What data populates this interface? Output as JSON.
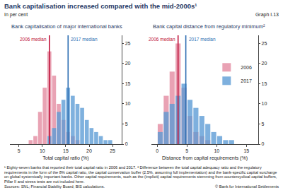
{
  "title": "Bank capitalisation increased compared with the mid-2000s¹",
  "subtitle": "In per cent",
  "graph_label": "Graph I.13",
  "notes": [
    "¹ Eighty-seven banks that reported their total capital ratio in 2006 and 2017.   ² Difference between the total capital adequacy ratio and the regulatory requirements in the form of the 8% capital ratio, the capital conservation buffer (2.5%, assuming full implementation) and the bank-specific capital surcharge on global systemically important banks. Other capital requirements, such as the (implicit) capital requirements stemming from countercyclical capital buffers, Pillar II and stress tests are not included here."
  ],
  "sources": "Sources: SNL; Financial Stability Board; BIS calculations.",
  "copyright": "© Bank for International Settlements",
  "chart_data": [
    {
      "type": "bar",
      "title": "Bank capitalisation of major international banks",
      "xlabel": "Total capital ratio (%)",
      "bins": [
        7,
        8,
        9,
        10,
        11,
        12,
        13,
        14,
        15,
        16,
        17,
        18,
        19,
        20,
        21,
        22,
        23,
        24,
        25
      ],
      "series": [
        {
          "name": "2006",
          "color": "#e3899f",
          "values": [
            1,
            2,
            8,
            14,
            23,
            17,
            10,
            6,
            3,
            2,
            1,
            0,
            0,
            0,
            0,
            0,
            0,
            0
          ]
        },
        {
          "name": "2017",
          "color": "#5b9bd5",
          "values": [
            0,
            0,
            0,
            0,
            2,
            4,
            8,
            11,
            14,
            12,
            10,
            9,
            6,
            4,
            3,
            2,
            1,
            1
          ]
        }
      ],
      "medians": [
        {
          "name": "2006 median",
          "value": 11.5,
          "color": "#c0143c"
        },
        {
          "name": "2017 median",
          "value": 15.5,
          "color": "#2f6fb3"
        }
      ],
      "xlim": [
        3,
        27
      ],
      "xticks": [
        5,
        10,
        15,
        20,
        25
      ],
      "ylim": [
        0,
        27
      ],
      "yticks": [
        0,
        5,
        10,
        15,
        20,
        25
      ],
      "grid": false
    },
    {
      "type": "bar",
      "title": "Bank capital distance from regulatory minimum²",
      "xlabel": "Distance from capital requirements (%)",
      "bins": [
        0,
        1,
        2,
        3,
        4,
        5,
        6,
        7,
        8,
        9,
        10,
        11,
        12,
        13
      ],
      "series": [
        {
          "name": "2006",
          "color": "#e3899f",
          "values": [
            5,
            12,
            18,
            25,
            14,
            7,
            3,
            2,
            1,
            0,
            0,
            0,
            0
          ]
        },
        {
          "name": "2017",
          "color": "#5b9bd5",
          "values": [
            3,
            8,
            10,
            12,
            15,
            11,
            9,
            7,
            5,
            3,
            2,
            1,
            1
          ]
        }
      ],
      "medians": [
        {
          "name": "2006 median",
          "value": 3.5,
          "color": "#c0143c"
        },
        {
          "name": "2017 median",
          "value": 4.8,
          "color": "#2f6fb3"
        }
      ],
      "xlim": [
        -1,
        17
      ],
      "xticks": [
        0,
        5,
        10,
        15
      ],
      "ylim": [
        0,
        27
      ],
      "yticks": [
        0,
        5,
        10,
        15,
        20,
        25
      ],
      "grid": false,
      "legend": "top right"
    }
  ]
}
